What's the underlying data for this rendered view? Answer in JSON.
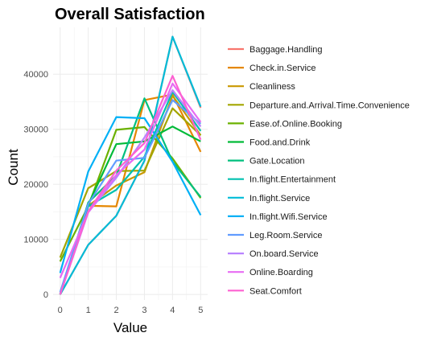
{
  "chart_data": {
    "type": "line",
    "title": "Overall Satisfaction",
    "xlabel": "Value",
    "ylabel": "Count",
    "x": [
      0,
      1,
      2,
      3,
      4,
      5
    ],
    "xlim": [
      -0.25,
      5.25
    ],
    "ylim": [
      -1000,
      48500
    ],
    "x_ticks": [
      "0",
      "1",
      "2",
      "3",
      "4",
      "5"
    ],
    "y_ticks": [
      {
        "value": 0,
        "label": "0"
      },
      {
        "value": 10000,
        "label": "10000"
      },
      {
        "value": 20000,
        "label": "20000"
      },
      {
        "value": 30000,
        "label": "30000"
      },
      {
        "value": 40000,
        "label": "40000"
      }
    ],
    "grid": true,
    "legend_position": "right",
    "series": [
      {
        "name": "Baggage.Handling",
        "color": "#F8766D",
        "values": [
          0,
          9000,
          14300,
          24300,
          46800,
          33900
        ]
      },
      {
        "name": "Check.in.Service",
        "color": "#E58700",
        "values": [
          0,
          16100,
          16000,
          35300,
          36300,
          25900
        ]
      },
      {
        "name": "Cleanliness",
        "color": "#C99800",
        "values": [
          0,
          16100,
          19800,
          22200,
          36100,
          28900
        ]
      },
      {
        "name": "Departure.and.Arrival.Time.Convenience",
        "color": "#A3A500",
        "values": [
          6700,
          19300,
          22400,
          22500,
          33800,
          28900
        ]
      },
      {
        "name": "Ease.of.Online.Booking",
        "color": "#6BB100",
        "values": [
          6000,
          16000,
          29900,
          30400,
          24700,
          17500
        ]
      },
      {
        "name": "Food.and.Drink",
        "color": "#00BA38",
        "values": [
          0,
          16300,
          27300,
          27800,
          30500,
          27800
        ]
      },
      {
        "name": "Gate.Location",
        "color": "#00BF7D",
        "values": [
          0,
          16700,
          21600,
          35600,
          24100,
          17700
        ]
      },
      {
        "name": "In.flight.Entertainment",
        "color": "#00C0AF",
        "values": [
          0,
          16000,
          19000,
          25000,
          36800,
          29700
        ]
      },
      {
        "name": "In.flight.Service",
        "color": "#00BCD8",
        "values": [
          0,
          9000,
          14300,
          24300,
          46800,
          34100
        ]
      },
      {
        "name": "In.flight.Wifi.Service",
        "color": "#00B0F6",
        "values": [
          3900,
          22300,
          32200,
          32000,
          24100,
          14400
        ]
      },
      {
        "name": "Leg.Room.Service",
        "color": "#619CFF",
        "values": [
          400,
          16400,
          24300,
          24800,
          35300,
          31000
        ]
      },
      {
        "name": "On.board.Service",
        "color": "#B983FF",
        "values": [
          0,
          14900,
          21200,
          28500,
          37100,
          30500
        ]
      },
      {
        "name": "Online.Boarding",
        "color": "#E76BF3",
        "values": [
          3000,
          14900,
          21700,
          26300,
          38300,
          31300
        ]
      },
      {
        "name": "Seat.Comfort",
        "color": "#FD61D1",
        "values": [
          0,
          15100,
          22500,
          27500,
          39700,
          28100
        ]
      }
    ]
  }
}
